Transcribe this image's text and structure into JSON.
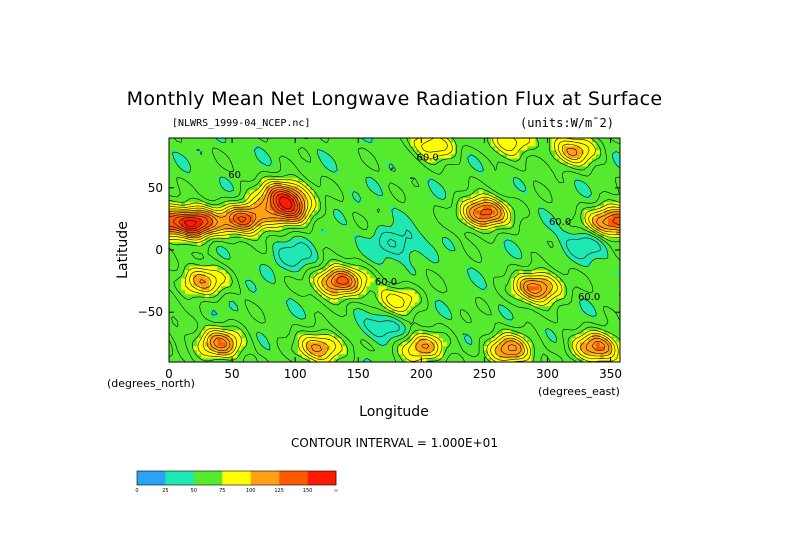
{
  "chart_data": {
    "type": "heatmap",
    "title": "Monthly Mean Net Longwave Radiation Flux at Surface",
    "source_label": "[NLWRS_1999-04_NCEP.nc]",
    "units_label": "(units:W/m¯2)",
    "xlabel": "Longitude",
    "ylabel": "Latitude",
    "x_unit_label": "(degrees_east)",
    "y_unit_label": "(degrees_north)",
    "xlim": [
      0,
      357.5
    ],
    "ylim": [
      -90,
      90
    ],
    "x_ticks": [
      0,
      50,
      100,
      150,
      200,
      250,
      300,
      350
    ],
    "x_tick_labels": [
      "0",
      "50",
      "100",
      "150",
      "200",
      "250",
      "300",
      "350"
    ],
    "y_ticks": [
      50,
      0,
      -50
    ],
    "y_tick_labels": [
      "50",
      "0",
      "−50"
    ],
    "contour_interval_text": "CONTOUR INTERVAL = 1.000E+01",
    "contour_labels": [
      {
        "text": "60.0",
        "x": 205,
        "y": 72
      },
      {
        "text": "60.0",
        "x": 310,
        "y": 20
      },
      {
        "text": "60.0",
        "x": 172,
        "y": -28
      },
      {
        "text": "60.0",
        "x": 333,
        "y": -40
      },
      {
        "text": "60",
        "x": 52,
        "y": 58
      }
    ],
    "colorbar": {
      "ticks": [
        "0",
        "25",
        "50",
        "75",
        "100",
        "125",
        "150",
        "∞"
      ],
      "colors": [
        "#2ba3f5",
        "#1ee8b3",
        "#55ea2e",
        "#ffff00",
        "#ffa015",
        "#ff5a00",
        "#ff1a00"
      ]
    },
    "field_features": [
      {
        "lon": 20,
        "lat": 22,
        "value": 165
      },
      {
        "lon": 60,
        "lat": 25,
        "value": 140
      },
      {
        "lon": 95,
        "lat": 33,
        "value": 130
      },
      {
        "lon": 90,
        "lat": 45,
        "value": 125
      },
      {
        "lon": 250,
        "lat": 30,
        "value": 140
      },
      {
        "lon": 350,
        "lat": 23,
        "value": 130
      },
      {
        "lon": 25,
        "lat": -25,
        "value": 110
      },
      {
        "lon": 135,
        "lat": -25,
        "value": 140
      },
      {
        "lon": 292,
        "lat": -30,
        "value": 130
      },
      {
        "lon": 180,
        "lat": -40,
        "value": 95
      },
      {
        "lon": 210,
        "lat": 85,
        "value": 100
      },
      {
        "lon": 270,
        "lat": 88,
        "value": 100
      },
      {
        "lon": 320,
        "lat": 80,
        "value": 110
      },
      {
        "lon": 40,
        "lat": -75,
        "value": 120
      },
      {
        "lon": 120,
        "lat": -78,
        "value": 115
      },
      {
        "lon": 200,
        "lat": -78,
        "value": 110
      },
      {
        "lon": 270,
        "lat": -80,
        "value": 120
      },
      {
        "lon": 340,
        "lat": -78,
        "value": 125
      },
      {
        "lon": 180,
        "lat": 5,
        "value": 28
      },
      {
        "lon": 330,
        "lat": 5,
        "value": 32
      },
      {
        "lon": 100,
        "lat": -5,
        "value": 35
      },
      {
        "lon": 170,
        "lat": -62,
        "value": 30
      }
    ],
    "field_background": 55
  }
}
